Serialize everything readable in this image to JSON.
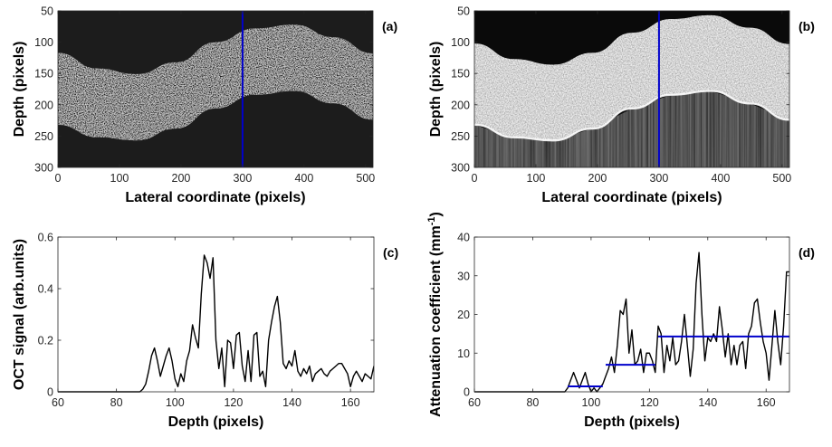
{
  "chart_data": [
    {
      "id": "a",
      "type": "heatmap",
      "panel_label": "(a)",
      "xlabel": "Lateral coordinate (pixels)",
      "ylabel": "Depth (pixels)",
      "xlim": [
        0,
        512
      ],
      "ylim": [
        50,
        300
      ],
      "y_reversed": true,
      "xticks": [
        0,
        100,
        200,
        300,
        400,
        500
      ],
      "yticks": [
        50,
        100,
        150,
        200,
        250,
        300
      ],
      "band_top": [
        [
          0,
          117
        ],
        [
          64,
          142
        ],
        [
          128,
          151
        ],
        [
          192,
          132
        ],
        [
          256,
          100
        ],
        [
          320,
          78
        ],
        [
          384,
          72
        ],
        [
          448,
          92
        ],
        [
          512,
          118
        ]
      ],
      "band_bottom": [
        [
          0,
          232
        ],
        [
          64,
          252
        ],
        [
          128,
          257
        ],
        [
          192,
          238
        ],
        [
          256,
          206
        ],
        [
          320,
          184
        ],
        [
          384,
          178
        ],
        [
          448,
          198
        ],
        [
          512,
          224
        ]
      ],
      "marker_x": 300,
      "marker_color": "#0000cc"
    },
    {
      "id": "b",
      "type": "heatmap",
      "panel_label": "(b)",
      "xlabel": "Lateral coordinate (pixels)",
      "ylabel": "Depth (pixels)",
      "xlim": [
        0,
        512
      ],
      "ylim": [
        50,
        300
      ],
      "y_reversed": true,
      "xticks": [
        0,
        100,
        200,
        300,
        400,
        500
      ],
      "yticks": [
        50,
        100,
        150,
        200,
        250,
        300
      ],
      "band_top": [
        [
          0,
          102
        ],
        [
          64,
          127
        ],
        [
          128,
          136
        ],
        [
          192,
          117
        ],
        [
          256,
          85
        ],
        [
          320,
          63
        ],
        [
          384,
          57
        ],
        [
          448,
          77
        ],
        [
          512,
          103
        ]
      ],
      "band_bottom": [
        [
          0,
          232
        ],
        [
          64,
          252
        ],
        [
          128,
          257
        ],
        [
          192,
          238
        ],
        [
          256,
          206
        ],
        [
          320,
          184
        ],
        [
          384,
          178
        ],
        [
          448,
          198
        ],
        [
          512,
          224
        ]
      ],
      "marker_x": 300,
      "marker_color": "#0000cc"
    },
    {
      "id": "c",
      "type": "line",
      "panel_label": "(c)",
      "xlabel": "Depth (pixels)",
      "ylabel": "OCT signal (arb.units)",
      "xlim": [
        60,
        168
      ],
      "ylim": [
        0,
        0.6
      ],
      "xticks": [
        60,
        80,
        100,
        120,
        140,
        160
      ],
      "yticks": [
        0,
        0.2,
        0.4,
        0.6
      ],
      "series": [
        {
          "color": "#000000",
          "x": [
            60,
            88,
            89,
            90,
            91,
            92,
            93,
            94,
            95,
            96,
            97,
            98,
            99,
            100,
            101,
            102,
            103,
            104,
            105,
            106,
            107,
            108,
            109,
            110,
            111,
            112,
            113,
            114,
            115,
            116,
            117,
            118,
            119,
            120,
            121,
            122,
            123,
            124,
            125,
            126,
            127,
            128,
            129,
            130,
            131,
            132,
            133,
            134,
            135,
            136,
            137,
            138,
            139,
            140,
            141,
            142,
            143,
            144,
            145,
            146,
            147,
            148,
            149,
            150,
            151,
            152,
            153,
            154,
            155,
            156,
            157,
            158,
            159,
            160,
            161,
            162,
            163,
            164,
            165,
            166,
            167,
            168
          ],
          "y": [
            0,
            0,
            0.01,
            0.03,
            0.08,
            0.14,
            0.17,
            0.12,
            0.06,
            0.1,
            0.14,
            0.17,
            0.12,
            0.05,
            0.02,
            0.07,
            0.04,
            0.12,
            0.16,
            0.26,
            0.21,
            0.17,
            0.38,
            0.53,
            0.5,
            0.44,
            0.52,
            0.2,
            0.09,
            0.17,
            0.02,
            0.2,
            0.19,
            0.09,
            0.22,
            0.23,
            0.1,
            0.04,
            0.16,
            0.04,
            0.22,
            0.23,
            0.06,
            0.08,
            0.02,
            0.2,
            0.27,
            0.33,
            0.37,
            0.27,
            0.11,
            0.09,
            0.12,
            0.1,
            0.16,
            0.08,
            0.06,
            0.09,
            0.07,
            0.1,
            0.04,
            0.07,
            0.08,
            0.09,
            0.07,
            0.06,
            0.08,
            0.09,
            0.1,
            0.11,
            0.11,
            0.09,
            0.07,
            0.02,
            0.06,
            0.08,
            0.06,
            0.04,
            0.07,
            0.06,
            0.05,
            0.1
          ]
        }
      ]
    },
    {
      "id": "d",
      "type": "line",
      "panel_label": "(d)",
      "xlabel": "Depth (pixels)",
      "ylabel": "Attenuation coefficient (mm⁻¹)",
      "ylabel_base": "Attenuation coefficient (mm",
      "ylabel_sup": "-1",
      "ylabel_close": ")",
      "xlim": [
        60,
        168
      ],
      "ylim": [
        0,
        40
      ],
      "xticks": [
        60,
        80,
        100,
        120,
        140,
        160
      ],
      "yticks": [
        0,
        10,
        20,
        30,
        40
      ],
      "series": [
        {
          "color": "#000000",
          "x": [
            60,
            91,
            92,
            93,
            94,
            95,
            96,
            97,
            98,
            99,
            100,
            101,
            102,
            103,
            104,
            105,
            106,
            107,
            108,
            109,
            110,
            111,
            112,
            113,
            114,
            115,
            116,
            117,
            118,
            119,
            120,
            121,
            122,
            123,
            124,
            125,
            126,
            127,
            128,
            129,
            130,
            131,
            132,
            133,
            134,
            135,
            136,
            137,
            138,
            139,
            140,
            141,
            142,
            143,
            144,
            145,
            146,
            147,
            148,
            149,
            150,
            151,
            152,
            153,
            154,
            155,
            156,
            157,
            158,
            159,
            160,
            161,
            162,
            163,
            164,
            165,
            166,
            167,
            168
          ],
          "y": [
            0,
            0,
            1,
            3,
            5,
            3,
            1,
            3,
            5,
            2,
            0,
            1,
            0,
            1,
            2,
            4,
            6,
            9,
            5,
            12,
            21,
            20,
            24,
            10,
            16,
            7,
            8,
            11,
            5,
            10,
            10,
            8,
            5,
            17,
            15,
            5,
            12,
            8,
            14,
            7,
            8,
            13,
            20,
            12,
            4,
            11,
            28,
            36,
            20,
            8,
            14,
            13,
            15,
            13,
            22,
            16,
            9,
            15,
            7,
            12,
            7,
            12,
            13,
            6,
            15,
            17,
            23,
            24,
            18,
            13,
            10,
            3,
            12,
            21,
            13,
            7,
            17,
            31,
            31
          ]
        },
        {
          "color": "#0000cc",
          "segments": [
            {
              "x": [
                92,
                104
              ],
              "y": 1.4
            },
            {
              "x": [
                105,
                122
              ],
              "y": 7.0
            },
            {
              "x": [
                123,
                168
              ],
              "y": 14.3
            }
          ]
        }
      ]
    }
  ]
}
